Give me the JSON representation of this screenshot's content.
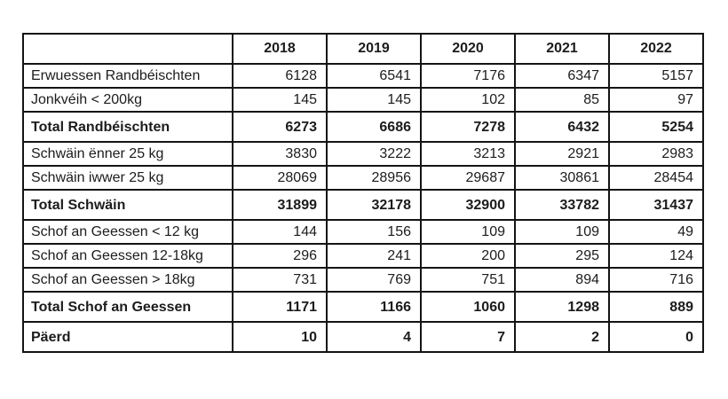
{
  "chart_data": {
    "type": "table",
    "title": "",
    "columns": [
      "",
      "2018",
      "2019",
      "2020",
      "2021",
      "2022"
    ],
    "rows": [
      {
        "label": "Erwuessen Randbéischten",
        "values": [
          6128,
          6541,
          7176,
          6347,
          5157
        ],
        "bold": false
      },
      {
        "label": "Jonkvéih < 200kg",
        "values": [
          145,
          145,
          102,
          85,
          97
        ],
        "bold": false
      },
      {
        "label": "Total Randbéischten",
        "values": [
          6273,
          6686,
          7278,
          6432,
          5254
        ],
        "bold": true
      },
      {
        "label": "Schwäin ënner 25 kg",
        "values": [
          3830,
          3222,
          3213,
          2921,
          2983
        ],
        "bold": false
      },
      {
        "label": "Schwäin iwwer 25 kg",
        "values": [
          28069,
          28956,
          29687,
          30861,
          28454
        ],
        "bold": false
      },
      {
        "label": "Total Schwäin",
        "values": [
          31899,
          32178,
          32900,
          33782,
          31437
        ],
        "bold": true
      },
      {
        "label": "Schof an Geessen < 12 kg",
        "values": [
          144,
          156,
          109,
          109,
          49
        ],
        "bold": false
      },
      {
        "label": "Schof an Geessen 12-18kg",
        "values": [
          296,
          241,
          200,
          295,
          124
        ],
        "bold": false
      },
      {
        "label": "Schof an Geessen > 18kg",
        "values": [
          731,
          769,
          751,
          894,
          716
        ],
        "bold": false
      },
      {
        "label": "Total Schof an Geessen",
        "values": [
          1171,
          1166,
          1060,
          1298,
          889
        ],
        "bold": true
      },
      {
        "label": "Päerd",
        "values": [
          10,
          4,
          7,
          2,
          0
        ],
        "bold": true
      }
    ],
    "layout": {
      "grid": true,
      "header_position": "top",
      "label_alignment": "left",
      "value_alignment": "right"
    },
    "colors": {
      "border": "#141414",
      "text": "#1c1c1c",
      "background": "#ffffff"
    }
  }
}
